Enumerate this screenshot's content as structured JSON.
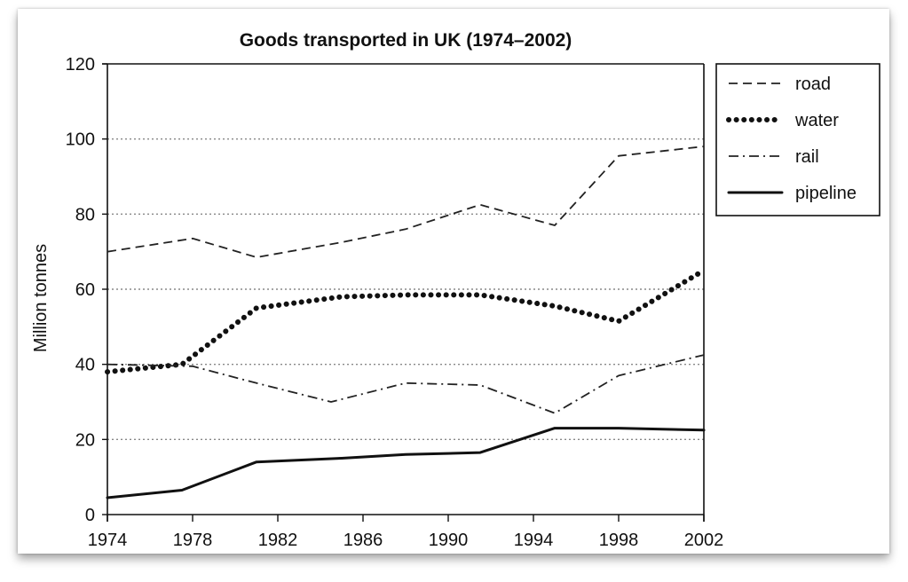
{
  "chart_data": {
    "type": "line",
    "title": "Goods transported in UK (1974–2002)",
    "xlabel": "",
    "ylabel": "Million tonnes",
    "ylim": [
      0,
      120
    ],
    "yticks": [
      0,
      20,
      40,
      60,
      80,
      100,
      120
    ],
    "xlim": [
      1974,
      2002
    ],
    "xticks": [
      1974,
      1978,
      1982,
      1986,
      1990,
      1994,
      1998,
      2002
    ],
    "grid": "horizontal dotted",
    "legend_position": "right",
    "series": [
      {
        "name": "road",
        "style": "dashed",
        "color": "#222222",
        "x": [
          1974,
          1978,
          1981,
          1985,
          1988,
          1991.5,
          1995,
          1998,
          2002
        ],
        "y": [
          70,
          73.5,
          68.5,
          72.5,
          76,
          82.5,
          77,
          95.5,
          98
        ]
      },
      {
        "name": "water",
        "style": "dotted",
        "color": "#111111",
        "x": [
          1974,
          1977.5,
          1981,
          1985,
          1988,
          1991.5,
          1995,
          1998,
          2002
        ],
        "y": [
          38,
          40,
          55,
          58,
          58.5,
          58.5,
          55.5,
          51.5,
          65
        ]
      },
      {
        "name": "rail",
        "style": "dashdot",
        "color": "#222222",
        "x": [
          1974,
          1978,
          1981,
          1984.5,
          1988,
          1991.5,
          1995,
          1998,
          2002
        ],
        "y": [
          40,
          39.5,
          35,
          30,
          35,
          34.5,
          27,
          37,
          42.5
        ]
      },
      {
        "name": "pipeline",
        "style": "solid",
        "color": "#111111",
        "x": [
          1974,
          1977.5,
          1981,
          1985,
          1988,
          1991.5,
          1995,
          1998,
          2002
        ],
        "y": [
          4.5,
          6.5,
          14,
          15,
          16,
          16.5,
          23,
          23,
          22.5
        ]
      }
    ]
  }
}
